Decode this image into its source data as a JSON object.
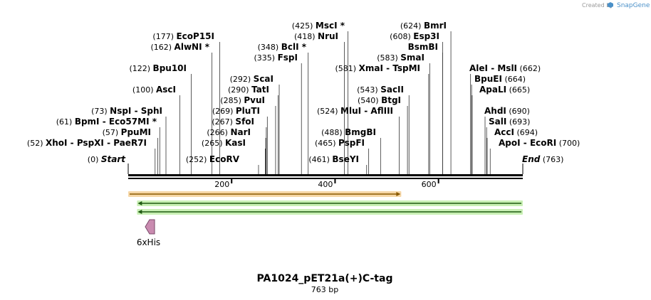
{
  "credit": {
    "prefix": "Created by",
    "brand": "SnapGene"
  },
  "title": "PA1024_pET21a(+)C-tag",
  "subtitle": "763 bp",
  "sequence_length": 763,
  "ruler_ticks": [
    {
      "value": 200,
      "label": "200"
    },
    {
      "value": 400,
      "label": "400"
    },
    {
      "value": 600,
      "label": "600"
    }
  ],
  "sites": [
    {
      "pos": "(0)",
      "name": "Start",
      "italic": true,
      "line_bp": 0,
      "side": "left"
    },
    {
      "pos": "(52)",
      "name": "XhoI",
      "sep": "-",
      "name2": "PspXI",
      "sep2": "-",
      "name3": "PaeR7I",
      "line_bp": 52,
      "side": "left"
    },
    {
      "pos": "(57)",
      "name": "PpuMI",
      "line_bp": 57,
      "side": "left"
    },
    {
      "pos": "(61)",
      "name": "BpmI",
      "sep": "-",
      "name2": "Eco57MI *",
      "line_bp": 61,
      "side": "left"
    },
    {
      "pos": "(73)",
      "name": "NspI",
      "sep": "-",
      "name2": "SphI",
      "line_bp": 73,
      "side": "left"
    },
    {
      "pos": "(100)",
      "name": "AscI",
      "line_bp": 100,
      "side": "left"
    },
    {
      "pos": "(122)",
      "name": "Bpu10I",
      "line_bp": 122,
      "side": "left"
    },
    {
      "pos": "(162)",
      "name": "AlwNI *",
      "line_bp": 162,
      "side": "left"
    },
    {
      "pos": "(177)",
      "name": "EcoP15I",
      "line_bp": 177,
      "side": "left"
    },
    {
      "pos": "(252)",
      "name": "EcoRV",
      "line_bp": 252,
      "side": "left"
    },
    {
      "pos": "(265)",
      "name": "KasI",
      "line_bp": 265,
      "side": "left"
    },
    {
      "pos": "(266)",
      "name": "NarI",
      "line_bp": 266,
      "side": "left"
    },
    {
      "pos": "(267)",
      "name": "SfoI",
      "line_bp": 267,
      "side": "left"
    },
    {
      "pos": "(269)",
      "name": "PluTI",
      "line_bp": 269,
      "side": "left"
    },
    {
      "pos": "(285)",
      "name": "PvuI",
      "line_bp": 285,
      "side": "left"
    },
    {
      "pos": "(290)",
      "name": "TatI",
      "line_bp": 290,
      "side": "left"
    },
    {
      "pos": "(292)",
      "name": "ScaI",
      "line_bp": 292,
      "side": "left"
    },
    {
      "pos": "(335)",
      "name": "FspI",
      "line_bp": 335,
      "side": "left"
    },
    {
      "pos": "(348)",
      "name": "BclI *",
      "line_bp": 348,
      "side": "left"
    },
    {
      "pos": "(418)",
      "name": "NruI",
      "line_bp": 418,
      "side": "left"
    },
    {
      "pos": "(425)",
      "name": "MscI *",
      "line_bp": 425,
      "side": "left"
    },
    {
      "pos": "(461)",
      "name": "BseYI",
      "line_bp": 461,
      "side": "left"
    },
    {
      "pos": "(465)",
      "name": "PspFI",
      "line_bp": 465,
      "side": "left"
    },
    {
      "pos": "(488)",
      "name": "BmgBI",
      "line_bp": 488,
      "side": "left"
    },
    {
      "pos": "(524)",
      "name": "MluI",
      "sep": "-",
      "name2": "AflIII",
      "line_bp": 524,
      "side": "left"
    },
    {
      "pos": "(540)",
      "name": "BtgI",
      "line_bp": 540,
      "side": "left"
    },
    {
      "pos": "(543)",
      "name": "SacII",
      "line_bp": 543,
      "side": "left"
    },
    {
      "pos": "(581)",
      "name": "XmaI",
      "sep": "-",
      "name2": "TspMI",
      "line_bp": 581,
      "side": "left"
    },
    {
      "pos": "(583)",
      "name": "SmaI",
      "line_bp": 583,
      "side": "left"
    },
    {
      "pos": "",
      "name": "BsmBI",
      "line_bp": 608,
      "side": "left"
    },
    {
      "pos": "(608)",
      "name": "Esp3I",
      "line_bp": 608,
      "side": "left"
    },
    {
      "pos": "(624)",
      "name": "BmrI",
      "line_bp": 624,
      "side": "left"
    },
    {
      "pos": "(662)",
      "name": "AleI",
      "sep": "-",
      "name2": "MslI",
      "line_bp": 662,
      "side": "right"
    },
    {
      "pos": "(664)",
      "name": "BpuEI",
      "line_bp": 664,
      "side": "right"
    },
    {
      "pos": "(665)",
      "name": "ApaLI",
      "line_bp": 665,
      "side": "right"
    },
    {
      "pos": "(690)",
      "name": "AhdI",
      "line_bp": 690,
      "side": "right"
    },
    {
      "pos": "(693)",
      "name": "SalI",
      "line_bp": 693,
      "side": "right"
    },
    {
      "pos": "(694)",
      "name": "AccI",
      "line_bp": 694,
      "side": "right"
    },
    {
      "pos": "(700)",
      "name": "ApoI",
      "sep": "-",
      "name2": "EcoRI",
      "line_bp": 700,
      "side": "right"
    },
    {
      "pos": "(763)",
      "name": "End",
      "italic": true,
      "line_bp": 763,
      "side": "right"
    }
  ],
  "features": [
    {
      "type": "orange-arrow",
      "start_bp": 0,
      "end_bp": 528,
      "direction": "forward"
    },
    {
      "type": "green-arrow",
      "start_bp": 17,
      "end_bp": 763,
      "direction": "reverse"
    },
    {
      "type": "green-arrow",
      "start_bp": 17,
      "end_bp": 763,
      "direction": "reverse"
    },
    {
      "type": "tag",
      "start_bp": 33,
      "end_bp": 51,
      "label": "6xHis"
    }
  ]
}
